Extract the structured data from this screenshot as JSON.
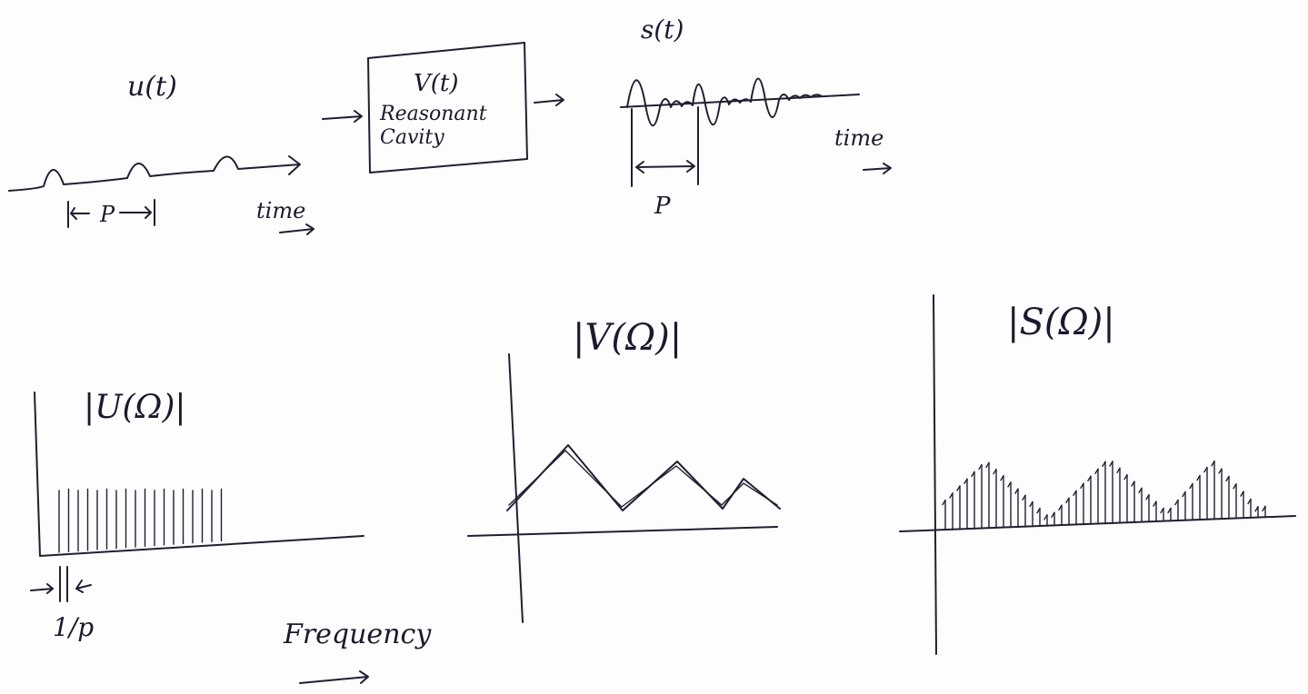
{
  "input": {
    "label": "u(t)",
    "period": "P",
    "time_label": "time"
  },
  "block": {
    "title": "V(t)",
    "line1": "Reasonant",
    "line2": "Cavity"
  },
  "output": {
    "label": "s(t)",
    "period": "P",
    "time_label": "time"
  },
  "spectra": [
    {
      "label": "|U(Ω)|"
    },
    {
      "label": "|V(Ω)|"
    },
    {
      "label": "|S(Ω)|"
    }
  ],
  "spacing_label": "1/p",
  "frequency_label": "Frequency"
}
